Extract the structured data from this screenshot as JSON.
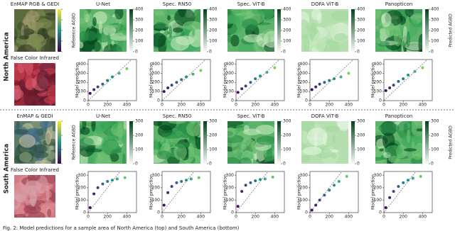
{
  "regions": [
    {
      "name": "North America",
      "input_title": "EnMAP RGB & GEDI",
      "infrared_label": "False Color Infrared",
      "reference_label": "Reference AGBD",
      "predicted_label": "Predicted AGBD",
      "colorbar_ticks": [
        0,
        100,
        200,
        300,
        400
      ],
      "scatter": {
        "ylabel": "Model prediction",
        "xlim": [
          0,
          500
        ],
        "ylim": [
          0,
          450
        ],
        "xticks": [
          0,
          200,
          400
        ],
        "yticks": [
          0,
          100,
          200,
          300,
          400
        ],
        "x": [
          20,
          60,
          100,
          150,
          200,
          250,
          320,
          400
        ]
      },
      "models": [
        {
          "name": "U-Net",
          "y": [
            80,
            120,
            150,
            180,
            220,
            260,
            300,
            350
          ]
        },
        {
          "name": "Spec. RN50",
          "y": [
            100,
            140,
            170,
            200,
            230,
            260,
            290,
            330
          ]
        },
        {
          "name": "Spec. ViT-B",
          "y": [
            90,
            130,
            160,
            200,
            240,
            270,
            310,
            360
          ]
        },
        {
          "name": "DOFA ViT-B",
          "y": [
            120,
            150,
            180,
            200,
            220,
            240,
            260,
            300
          ]
        },
        {
          "name": "Panopticon",
          "y": [
            110,
            140,
            170,
            210,
            240,
            280,
            320,
            360
          ]
        }
      ]
    },
    {
      "name": "South America",
      "input_title": "EnMAP & GEDI",
      "infrared_label": "False Color Infrared",
      "reference_label": "Reference AGBD",
      "predicted_label": "Predicted AGBD",
      "colorbar_ticks": [
        0,
        100,
        200,
        300
      ],
      "scatter": {
        "ylabel": "Model prediction",
        "xlim": [
          0,
          500
        ],
        "ylim": [
          0,
          330
        ],
        "xticks": [
          0,
          200,
          400
        ],
        "yticks": [
          0,
          100,
          200,
          300
        ],
        "x": [
          20,
          60,
          100,
          150,
          200,
          250,
          300,
          380
        ]
      },
      "models": [
        {
          "name": "U-Net",
          "y": [
            40,
            150,
            200,
            230,
            250,
            260,
            270,
            280
          ]
        },
        {
          "name": "Spec. RN50",
          "y": [
            60,
            160,
            210,
            240,
            250,
            260,
            270,
            280
          ]
        },
        {
          "name": "Spec. ViT-B",
          "y": [
            50,
            170,
            220,
            240,
            255,
            265,
            270,
            285
          ]
        },
        {
          "name": "DOFA ViT-B",
          "y": [
            20,
            60,
            100,
            140,
            180,
            220,
            250,
            290
          ]
        },
        {
          "name": "Panopticon",
          "y": [
            40,
            120,
            170,
            210,
            240,
            260,
            275,
            290
          ]
        }
      ]
    }
  ],
  "caption": "Fig. 2: Model predictions for a sample area of North America (top) and South America (bottom)"
}
